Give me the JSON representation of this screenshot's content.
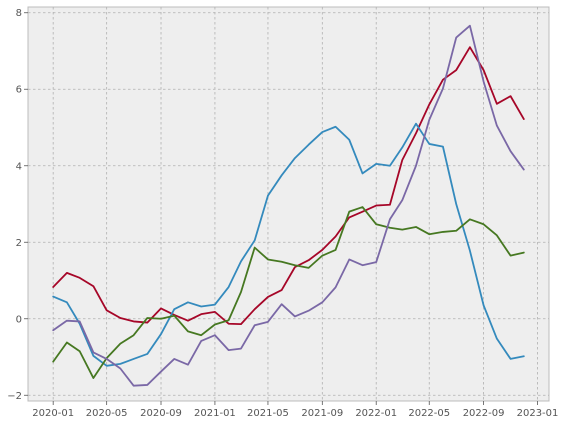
{
  "chart_data": {
    "type": "line",
    "x": [
      "2020-01",
      "2020-02",
      "2020-03",
      "2020-04",
      "2020-05",
      "2020-06",
      "2020-07",
      "2020-08",
      "2020-09",
      "2020-10",
      "2020-11",
      "2020-12",
      "2021-01",
      "2021-02",
      "2021-03",
      "2021-04",
      "2021-05",
      "2021-06",
      "2021-07",
      "2021-08",
      "2021-09",
      "2021-10",
      "2021-11",
      "2021-12",
      "2022-01",
      "2022-02",
      "2022-03",
      "2022-04",
      "2022-05",
      "2022-06",
      "2022-07",
      "2022-08",
      "2022-09",
      "2022-10",
      "2022-11",
      "2022-12"
    ],
    "series": [
      {
        "color": "#A60628",
        "values": [
          0.83,
          1.2,
          1.07,
          0.85,
          0.22,
          0.02,
          -0.07,
          -0.1,
          0.27,
          0.1,
          -0.05,
          0.12,
          0.18,
          -0.13,
          -0.14,
          0.25,
          0.57,
          0.75,
          1.35,
          1.53,
          1.8,
          2.15,
          2.65,
          2.8,
          2.96,
          2.98,
          4.15,
          4.85,
          5.6,
          6.25,
          6.5,
          7.1,
          6.5,
          5.62,
          5.82,
          5.22
        ]
      },
      {
        "color": "#348ABD",
        "values": [
          0.58,
          0.43,
          -0.13,
          -0.97,
          -1.23,
          -1.18,
          -1.05,
          -0.92,
          -0.4,
          0.25,
          0.43,
          0.32,
          0.37,
          0.83,
          1.5,
          2.05,
          3.22,
          3.75,
          4.2,
          4.55,
          4.88,
          5.02,
          4.68,
          3.8,
          4.05,
          4.0,
          4.48,
          5.1,
          4.57,
          4.5,
          3.0,
          1.78,
          0.35,
          -0.52,
          -1.05,
          -0.98
        ]
      },
      {
        "color": "#467821",
        "values": [
          -1.12,
          -0.62,
          -0.85,
          -1.55,
          -1.03,
          -0.65,
          -0.43,
          0.02,
          0.0,
          0.08,
          -0.33,
          -0.43,
          -0.15,
          -0.04,
          0.7,
          1.86,
          1.55,
          1.49,
          1.4,
          1.33,
          1.65,
          1.8,
          2.8,
          2.92,
          2.47,
          2.38,
          2.33,
          2.4,
          2.21,
          2.27,
          2.3,
          2.6,
          2.47,
          2.18,
          1.65,
          1.73
        ]
      },
      {
        "color": "#7A68A6",
        "values": [
          -0.3,
          -0.05,
          -0.07,
          -0.88,
          -1.05,
          -1.3,
          -1.75,
          -1.73,
          -1.38,
          -1.05,
          -1.2,
          -0.58,
          -0.43,
          -0.82,
          -0.78,
          -0.17,
          -0.08,
          0.38,
          0.06,
          0.21,
          0.43,
          0.82,
          1.55,
          1.4,
          1.48,
          2.6,
          3.1,
          4.0,
          5.2,
          6.02,
          7.35,
          7.66,
          6.2,
          5.05,
          4.38,
          3.9
        ]
      }
    ],
    "xticks": [
      "2020-01",
      "2020-05",
      "2020-09",
      "2021-01",
      "2021-05",
      "2021-09",
      "2022-01",
      "2022-05",
      "2022-09",
      "2023-01"
    ],
    "yticks": [
      -2,
      0,
      2,
      4,
      6,
      8
    ],
    "xlim": [
      "2019-11-05",
      "2023-01-27"
    ],
    "ylim": [
      -2.15,
      8.15
    ],
    "grid": true,
    "title": "",
    "xlabel": "",
    "ylabel": ""
  }
}
